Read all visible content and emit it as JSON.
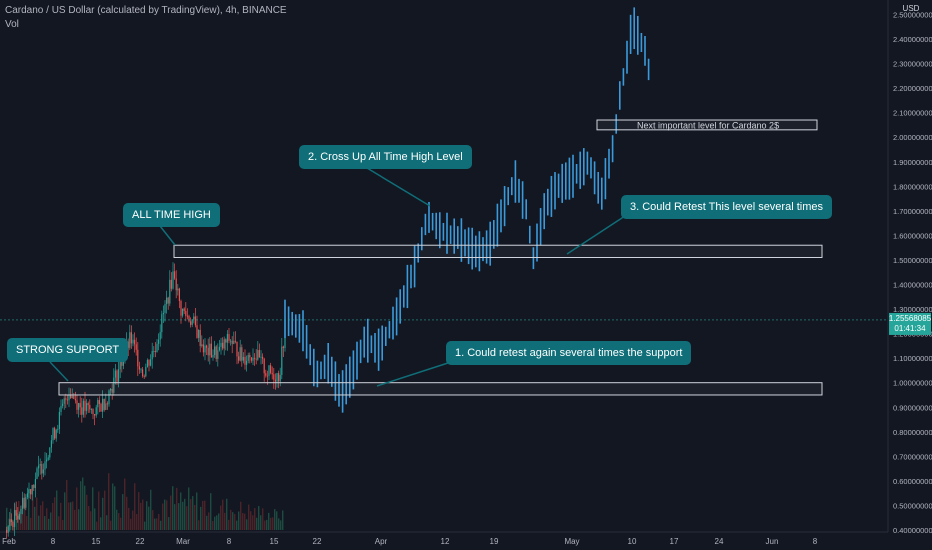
{
  "header": {
    "title": "Cardano / US Dollar (calculated by TradingView), 4h, BINANCE",
    "indicator": "Vol"
  },
  "price_scale": {
    "currency": "USD",
    "current_price": "1.25568085",
    "countdown": "01:41:34"
  },
  "annotations": {
    "strong_support": "STRONG SUPPORT",
    "all_time_high": "ALL TIME HIGH",
    "cross_up": "2. Cross Up All Time High Level",
    "retest_level": "3. Could Retest This level several times",
    "retest_support": "1. Could retest again several times the support",
    "next_level": "Next important level for Cardano 2$"
  },
  "colors": {
    "background": "#131722",
    "candle_up": "#26a69a",
    "candle_down": "#ef5350",
    "projection": "#3a9bdc",
    "callout": "#0f6e78",
    "zone_border": "#d1d4dc"
  },
  "chart_data": {
    "type": "candlestick",
    "title": "Cardano / US Dollar (calculated by TradingView), 4h, BINANCE",
    "x_ticks": [
      "Feb",
      "8",
      "15",
      "22",
      "Mar",
      "8",
      "15",
      "22",
      "Apr",
      "12",
      "19",
      "May",
      "10",
      "17",
      "24",
      "Jun",
      "8"
    ],
    "y_ticks": [
      "2.50000000",
      "2.40000000",
      "2.30000000",
      "2.20000000",
      "2.10000000",
      "2.00000000",
      "1.90000000",
      "1.80000000",
      "1.70000000",
      "1.60000000",
      "1.50000000",
      "1.40000000",
      "1.30000000",
      "1.20000000",
      "1.10000000",
      "1.00000000",
      "0.90000000",
      "0.80000000",
      "0.70000000",
      "0.60000000",
      "0.50000000",
      "0.40000000"
    ],
    "ylim": [
      0.4,
      2.5
    ],
    "historical_close": [
      [
        "2021-02-01",
        0.4
      ],
      [
        "2021-02-03",
        0.48
      ],
      [
        "2021-02-05",
        0.58
      ],
      [
        "2021-02-07",
        0.68
      ],
      [
        "2021-02-09",
        0.82
      ],
      [
        "2021-02-11",
        0.97
      ],
      [
        "2021-02-13",
        0.9
      ],
      [
        "2021-02-15",
        0.88
      ],
      [
        "2021-02-17",
        0.93
      ],
      [
        "2021-02-19",
        1.05
      ],
      [
        "2021-02-21",
        1.18
      ],
      [
        "2021-02-23",
        1.04
      ],
      [
        "2021-02-25",
        1.15
      ],
      [
        "2021-02-27",
        1.35
      ],
      [
        "2021-02-28",
        1.46
      ],
      [
        "2021-03-01",
        1.3
      ],
      [
        "2021-03-03",
        1.25
      ],
      [
        "2021-03-05",
        1.13
      ],
      [
        "2021-03-07",
        1.12
      ],
      [
        "2021-03-09",
        1.18
      ],
      [
        "2021-03-11",
        1.1
      ],
      [
        "2021-03-13",
        1.12
      ],
      [
        "2021-03-15",
        1.04
      ],
      [
        "2021-03-17",
        1.03
      ],
      [
        "2021-03-18",
        1.25
      ]
    ],
    "projection_path": [
      [
        "2021-03-18",
        1.26
      ],
      [
        "2021-03-21",
        1.21
      ],
      [
        "2021-03-23",
        1.03
      ],
      [
        "2021-03-25",
        1.08
      ],
      [
        "2021-03-27",
        0.95
      ],
      [
        "2021-03-29",
        1.05
      ],
      [
        "2021-03-31",
        1.18
      ],
      [
        "2021-04-02",
        1.13
      ],
      [
        "2021-04-05",
        1.27
      ],
      [
        "2021-04-08",
        1.48
      ],
      [
        "2021-04-10",
        1.68
      ],
      [
        "2021-04-12",
        1.62
      ],
      [
        "2021-04-15",
        1.59
      ],
      [
        "2021-04-18",
        1.53
      ],
      [
        "2021-04-20",
        1.56
      ],
      [
        "2021-04-22",
        1.69
      ],
      [
        "2021-04-24",
        1.83
      ],
      [
        "2021-04-26",
        1.7
      ],
      [
        "2021-04-27",
        1.5
      ],
      [
        "2021-04-29",
        1.72
      ],
      [
        "2021-05-01",
        1.8
      ],
      [
        "2021-05-04",
        1.85
      ],
      [
        "2021-05-06",
        1.9
      ],
      [
        "2021-05-08",
        1.76
      ],
      [
        "2021-05-10",
        1.97
      ],
      [
        "2021-05-11",
        2.17
      ],
      [
        "2021-05-12",
        2.3
      ],
      [
        "2021-05-13",
        2.46
      ],
      [
        "2021-05-15",
        2.36
      ],
      [
        "2021-05-16",
        2.23
      ]
    ],
    "zones": [
      {
        "low": 0.95,
        "high": 1.0
      },
      {
        "low": 1.51,
        "high": 1.56
      },
      {
        "low": 2.03,
        "high": 2.07
      }
    ],
    "current_price": 1.25568085
  }
}
